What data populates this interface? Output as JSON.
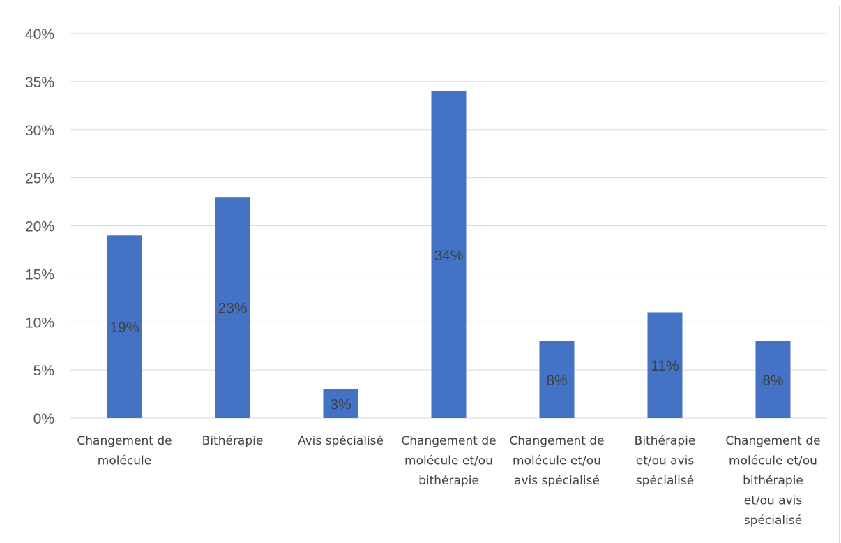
{
  "chart_data": {
    "type": "bar",
    "categories": [
      [
        "Changement de",
        "molécule"
      ],
      [
        "Bithérapie"
      ],
      [
        "Avis spécialisé"
      ],
      [
        "Changement de",
        "molécule et/ou",
        "bithérapie"
      ],
      [
        "Changement de",
        "molécule et/ou",
        "avis spécialisé"
      ],
      [
        "Bithérapie",
        "et/ou avis",
        "spécialisé"
      ],
      [
        "Changement de",
        "molécule et/ou",
        "bithérapie",
        "et/ou avis",
        "spécialisé"
      ]
    ],
    "values": [
      19,
      23,
      3,
      34,
      8,
      11,
      8
    ],
    "data_labels": [
      "19%",
      "23%",
      "3%",
      "34%",
      "8%",
      "11%",
      "8%"
    ],
    "y_ticks": [
      "0%",
      "5%",
      "10%",
      "15%",
      "20%",
      "25%",
      "30%",
      "35%",
      "40%"
    ],
    "ylim": [
      0,
      40
    ],
    "grid": true,
    "legend": "none",
    "bar_color": "#4472c4"
  }
}
